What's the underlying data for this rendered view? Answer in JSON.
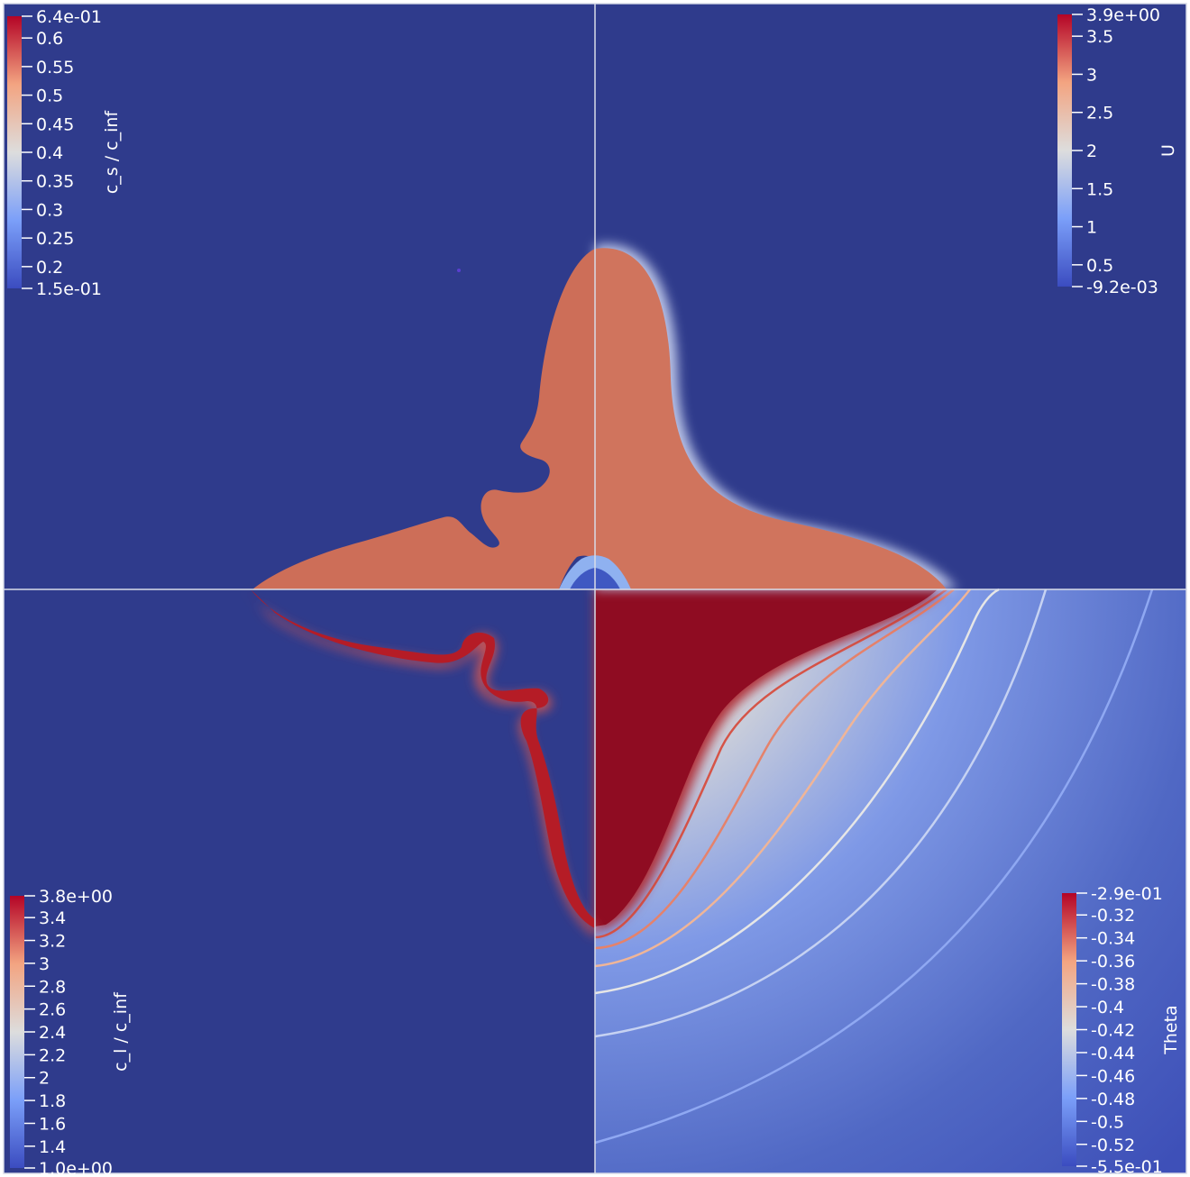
{
  "colors": {
    "background_blue": "#2f3b8c",
    "solid_red": "#8f0c22",
    "salmon": "#d0745d",
    "divider": "#d8dce8"
  },
  "quadrants": [
    {
      "position": "top-left",
      "colorbar": {
        "title": "c_s / c_inf",
        "max_label": "6.4e-01",
        "min_label": "1.5e-01",
        "ticks": [
          "0.6",
          "0.55",
          "0.5",
          "0.45",
          "0.4",
          "0.35",
          "0.3",
          "0.25",
          "0.2"
        ]
      }
    },
    {
      "position": "top-right",
      "colorbar": {
        "title": "U",
        "max_label": "3.9e+00",
        "min_label": "-9.2e-03",
        "ticks": [
          "3.5",
          "3",
          "2.5",
          "2",
          "1.5",
          "1",
          "0.5"
        ]
      }
    },
    {
      "position": "bottom-left",
      "colorbar": {
        "title": "c_l / c_inf",
        "max_label": "3.8e+00",
        "min_label": "1.0e+00",
        "ticks": [
          "3.4",
          "3.2",
          "3",
          "2.8",
          "2.6",
          "2.4",
          "2.2",
          "2",
          "1.8",
          "1.6",
          "1.4"
        ]
      }
    },
    {
      "position": "bottom-right",
      "colorbar": {
        "title": "Theta",
        "max_label": "-2.9e-01",
        "min_label": "-5.5e-01",
        "ticks": [
          "-0.32",
          "-0.34",
          "-0.36",
          "-0.38",
          "-0.4",
          "-0.42",
          "-0.44",
          "-0.46",
          "-0.48",
          "-0.5",
          "-0.52"
        ]
      }
    }
  ]
}
